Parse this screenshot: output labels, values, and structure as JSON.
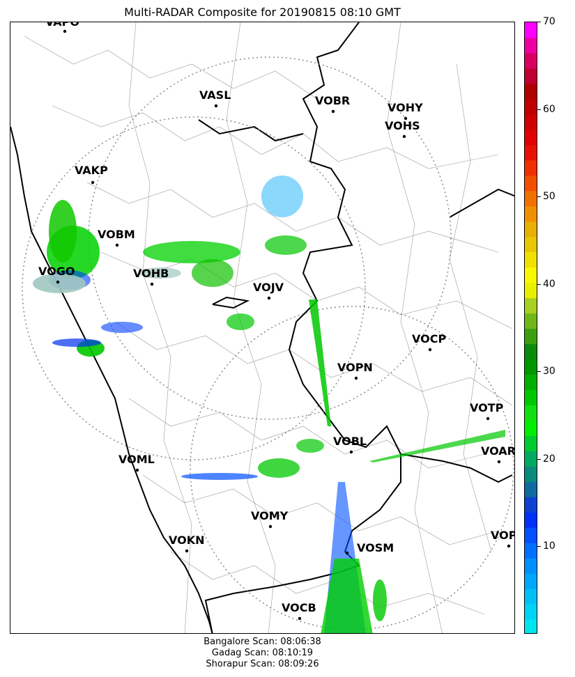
{
  "title": "Multi-RADAR Composite for 20190815 08:10 GMT",
  "colorbar": {
    "min": 0,
    "max": 70,
    "ticks": [
      10,
      20,
      30,
      40,
      50,
      60,
      70
    ],
    "tick_labels": [
      "10",
      "20",
      "30",
      "40",
      "50",
      "60",
      "70"
    ],
    "colors": [
      "#00e5ee",
      "#00d4f5",
      "#00c0f8",
      "#00a8fb",
      "#0090fd",
      "#0070ff",
      "#0050ff",
      "#0030f8",
      "#1040d0",
      "#106aa0",
      "#0a8c7c",
      "#00aa60",
      "#00cc30",
      "#00ee00",
      "#10e010",
      "#00c800",
      "#00b000",
      "#009800",
      "#0a8c0a",
      "#3aa010",
      "#70b818",
      "#a8d020",
      "#e8f000",
      "#f8f800",
      "#f0e000",
      "#e8c800",
      "#e8b000",
      "#f09000",
      "#f07000",
      "#f05000",
      "#f03000",
      "#e81000",
      "#e00000",
      "#d00000",
      "#c00000",
      "#b00000",
      "#c00030",
      "#d80060",
      "#f000a0",
      "#ff00ff"
    ]
  },
  "stations": [
    {
      "id": "VAPO"
    },
    {
      "id": "VASL"
    },
    {
      "id": "VOBR"
    },
    {
      "id": "VOHY"
    },
    {
      "id": "VOHS"
    },
    {
      "id": "VAKP"
    },
    {
      "id": "VOBM"
    },
    {
      "id": "VOGO"
    },
    {
      "id": "VOHB"
    },
    {
      "id": "VOJV"
    },
    {
      "id": "VOCP"
    },
    {
      "id": "VOPN"
    },
    {
      "id": "VOTP"
    },
    {
      "id": "VOBL"
    },
    {
      "id": "VOAR"
    },
    {
      "id": "VOML"
    },
    {
      "id": "VOMY"
    },
    {
      "id": "VOKN"
    },
    {
      "id": "VOSM"
    },
    {
      "id": "VOPC"
    },
    {
      "id": "VOCB"
    }
  ],
  "footer": {
    "line1": "Bangalore Scan: 08:06:38",
    "line2": "Gadag Scan: 08:10:19",
    "line3": "Shorapur Scan: 08:09:26"
  }
}
